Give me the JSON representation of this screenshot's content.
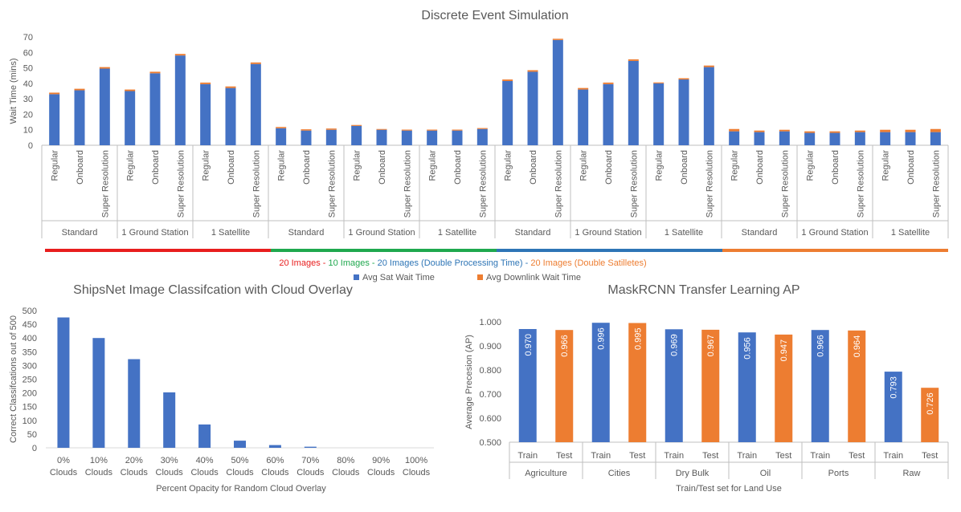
{
  "chart_data": [
    {
      "type": "bar",
      "stacked": true,
      "title": "Discrete Event Simulation",
      "ylabel": "Wait Time (mins)",
      "xlabel": "",
      "ylim": [
        0,
        70
      ],
      "yticks": [
        0,
        10,
        20,
        30,
        40,
        50,
        60,
        70
      ],
      "methods": [
        "Regular",
        "Onboard",
        "Super Resolution"
      ],
      "groups": [
        "Standard",
        "1 Ground Station",
        "1 Satellite",
        "Standard",
        "1 Ground Station",
        "1 Satellite",
        "Standard",
        "1 Ground Station",
        "1 Satellite",
        "Standard",
        "1 Ground Station",
        "1 Satellite"
      ],
      "series": [
        {
          "name": "Avg Sat Wait Time",
          "color": "#4472C4",
          "values": [
            33,
            35.5,
            49.5,
            35,
            46.5,
            58,
            39.5,
            37,
            52.5,
            11,
            9.5,
            10,
            12.5,
            10,
            9.5,
            9.5,
            9.5,
            10.5,
            41.5,
            47.5,
            68,
            36,
            39.5,
            54.5,
            40,
            42.5,
            50.5,
            9,
            8.5,
            9,
            8,
            8,
            8.5,
            8.5,
            8.5,
            8.5
          ]
        },
        {
          "name": "Avg Downlink Wait Time",
          "color": "#ED7D31",
          "values": [
            1,
            1,
            1,
            1,
            1,
            1,
            1,
            1,
            1,
            0.8,
            0.8,
            0.8,
            0.6,
            0.5,
            0.6,
            0.6,
            0.6,
            0.6,
            1,
            1,
            0.8,
            1,
            1,
            1,
            0.6,
            0.8,
            1,
            1.5,
            1,
            1,
            1,
            1,
            1,
            1.5,
            1.5,
            2
          ]
        }
      ],
      "scenario_legend": [
        {
          "label": "20 Images",
          "color": "#E81E1E"
        },
        {
          "label": "10 Images",
          "color": "#1FA84E"
        },
        {
          "label": "20 Images (Double Processing Time)",
          "color": "#2E75B6"
        },
        {
          "label": "20 Images (Double Satilletes)",
          "color": "#ED7D31"
        }
      ],
      "scenario_sep": " - ",
      "legend_position": "bottom"
    },
    {
      "type": "bar",
      "title": "ShipsNet Image Classifcation with Cloud Overlay",
      "ylabel": "Correct Classifcations out of 500",
      "xlabel": "Percent Opacity for Random Cloud Overlay",
      "ylim": [
        0,
        500
      ],
      "yticks": [
        0,
        50,
        100,
        150,
        200,
        250,
        300,
        350,
        400,
        450,
        500
      ],
      "categories": [
        "0%",
        "10%",
        "20%",
        "30%",
        "40%",
        "50%",
        "60%",
        "70%",
        "80%",
        "90%",
        "100%"
      ],
      "category_suffix": "Clouds",
      "values": [
        475,
        400,
        323,
        202,
        85,
        26,
        10,
        4,
        0,
        0,
        0
      ],
      "color": "#4472C4"
    },
    {
      "type": "bar",
      "title": "MaskRCNN Transfer Learning AP",
      "ylabel": "Average Precesion (AP)",
      "xlabel": "Train/Test set for Land Use",
      "ylim": [
        0.5,
        1.0
      ],
      "yticks": [
        "0.500",
        "0.600",
        "0.700",
        "0.800",
        "0.900",
        "1.000"
      ],
      "groups": [
        "Agriculture",
        "Cities",
        "Dry Bulk",
        "Oil",
        "Ports",
        "Raw"
      ],
      "splits": [
        "Train",
        "Test"
      ],
      "train_values": [
        0.97,
        0.996,
        0.969,
        0.956,
        0.966,
        0.793
      ],
      "test_values": [
        0.966,
        0.995,
        0.967,
        0.947,
        0.964,
        0.726
      ],
      "train_labels": [
        "0.970",
        "0.996",
        "0.969",
        "0.956",
        "0.966",
        "0.793"
      ],
      "test_labels": [
        "0.966",
        "0.995",
        "0.967",
        "0.947",
        "0.964",
        "0.726"
      ],
      "colors": {
        "train": "#4472C4",
        "test": "#ED7D31"
      }
    }
  ]
}
